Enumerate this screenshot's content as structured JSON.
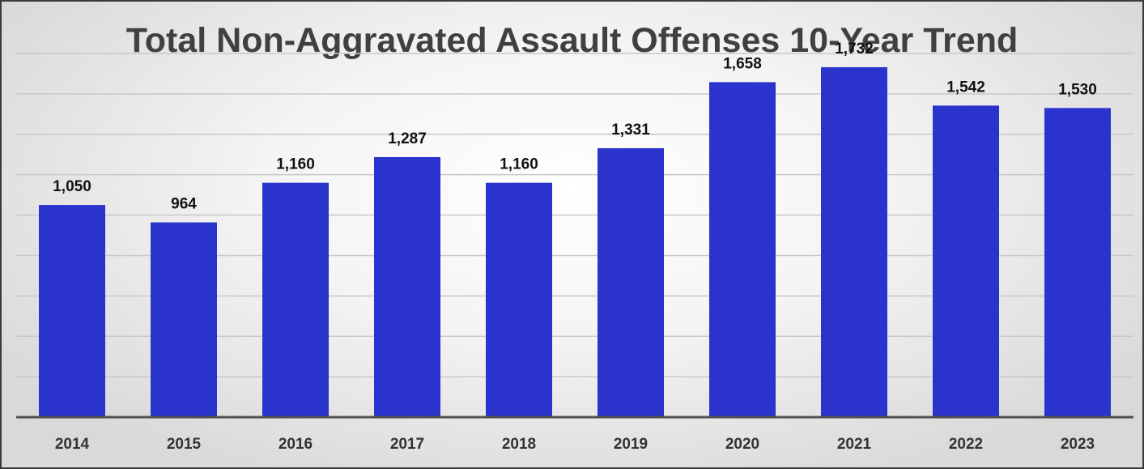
{
  "chart_data": {
    "type": "bar",
    "title": "Total Non-Aggravated Assault Offenses 10-Year Trend",
    "categories": [
      "2014",
      "2015",
      "2016",
      "2017",
      "2018",
      "2019",
      "2020",
      "2021",
      "2022",
      "2023"
    ],
    "values": [
      1050,
      964,
      1160,
      1287,
      1160,
      1331,
      1658,
      1732,
      1542,
      1530
    ],
    "data_labels": [
      "1,050",
      "964",
      "1,160",
      "1,287",
      "1,160",
      "1,331",
      "1,658",
      "1,732",
      "1,542",
      "1,530"
    ],
    "xlabel": "",
    "ylabel": "",
    "ylim": [
      0,
      1800
    ],
    "gridlines": [
      200,
      400,
      600,
      800,
      1000,
      1200,
      1400,
      1600,
      1800
    ],
    "grid": true,
    "y_tick_labels_visible": false,
    "legend": "none",
    "bar_color": "#2a33cc"
  }
}
